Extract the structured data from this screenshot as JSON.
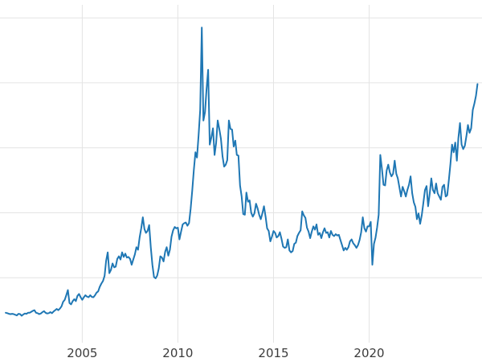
{
  "chart_data": {
    "type": "line",
    "title": "",
    "xlabel": "",
    "ylabel": "",
    "x_tick_labels": [
      "2005",
      "2010",
      "2015",
      "2020"
    ],
    "x_ticks": [
      2005,
      2010,
      2015,
      2020
    ],
    "y_ticks": [
      10,
      20,
      30,
      40,
      50
    ],
    "x_range": [
      2000.7,
      2025.9
    ],
    "y_range": [
      0,
      52
    ],
    "grid": true,
    "legend": "none",
    "line_color": "#1f77b4",
    "grid_color": "#e4e4e4",
    "tick_label_color": "#3b3b3b",
    "background_color": "#ffffff",
    "x_start": 2001.0,
    "x_step": 0.0833333,
    "values": [
      4.6,
      4.55,
      4.45,
      4.4,
      4.45,
      4.4,
      4.3,
      4.2,
      4.45,
      4.4,
      4.15,
      4.35,
      4.5,
      4.45,
      4.6,
      4.6,
      4.75,
      4.9,
      5.0,
      4.6,
      4.55,
      4.4,
      4.5,
      4.7,
      4.85,
      4.6,
      4.5,
      4.55,
      4.7,
      4.55,
      4.8,
      5.0,
      5.2,
      5.0,
      5.25,
      5.6,
      6.3,
      6.6,
      7.3,
      8.1,
      6.1,
      5.9,
      6.4,
      6.7,
      6.4,
      7.2,
      7.5,
      7.0,
      6.6,
      7.0,
      7.3,
      7.1,
      7.0,
      7.3,
      7.05,
      7.0,
      7.3,
      7.7,
      7.9,
      8.6,
      9.1,
      9.5,
      10.3,
      12.6,
      13.9,
      10.7,
      11.2,
      12.2,
      11.6,
      11.7,
      12.9,
      13.3,
      12.8,
      13.9,
      13.2,
      13.7,
      13.1,
      13.2,
      12.9,
      12.0,
      12.8,
      13.6,
      14.7,
      14.3,
      16.2,
      17.6,
      19.3,
      17.5,
      16.9,
      17.2,
      18.1,
      14.7,
      12.0,
      10.1,
      9.9,
      10.3,
      11.4,
      13.3,
      13.1,
      12.5,
      14.0,
      14.7,
      13.4,
      14.3,
      16.3,
      17.3,
      17.8,
      17.6,
      17.7,
      15.9,
      17.1,
      18.2,
      18.4,
      18.5,
      18.0,
      18.4,
      20.6,
      23.4,
      26.6,
      29.3,
      28.5,
      31.9,
      35.8,
      48.5,
      34.2,
      35.5,
      39.0,
      42.0,
      30.5,
      31.6,
      33.0,
      28.9,
      30.7,
      34.2,
      32.9,
      31.4,
      28.7,
      27.1,
      27.4,
      28.1,
      34.2,
      32.9,
      32.8,
      30.2,
      31.1,
      28.9,
      28.8,
      24.2,
      22.5,
      19.8,
      19.7,
      23.1,
      21.7,
      21.9,
      20.0,
      19.4,
      19.9,
      21.4,
      20.7,
      19.7,
      19.0,
      19.9,
      21.0,
      19.4,
      17.6,
      17.2,
      15.6,
      16.3,
      17.2,
      16.9,
      16.2,
      16.4,
      17.0,
      16.0,
      14.8,
      14.6,
      14.7,
      15.9,
      14.2,
      13.9,
      14.1,
      15.2,
      15.4,
      16.4,
      16.9,
      17.3,
      20.2,
      19.6,
      19.2,
      17.7,
      17.1,
      16.1,
      17.1,
      17.9,
      17.4,
      18.2,
      16.6,
      16.9,
      16.1,
      17.0,
      17.6,
      16.9,
      17.0,
      16.2,
      17.2,
      16.6,
      16.4,
      16.7,
      16.5,
      16.6,
      15.8,
      15.0,
      14.2,
      14.6,
      14.3,
      14.7,
      15.6,
      15.9,
      15.3,
      15.0,
      14.6,
      15.0,
      15.8,
      17.0,
      19.3,
      17.6,
      17.1,
      17.9,
      17.9,
      18.6,
      12.0,
      15.2,
      16.2,
      17.7,
      19.7,
      28.9,
      26.8,
      24.3,
      24.2,
      26.5,
      27.4,
      26.2,
      25.6,
      26.0,
      28.0,
      26.0,
      25.3,
      23.9,
      22.5,
      24.0,
      23.3,
      22.5,
      23.5,
      24.3,
      25.6,
      23.0,
      21.6,
      20.9,
      19.0,
      19.9,
      18.3,
      19.6,
      21.5,
      23.5,
      24.1,
      21.0,
      22.9,
      25.3,
      23.5,
      23.0,
      24.5,
      23.0,
      22.5,
      22.0,
      24.0,
      24.3,
      22.5,
      22.7,
      25.0,
      27.5,
      30.5,
      29.3,
      30.8,
      28.0,
      31.5,
      33.8,
      30.5,
      29.8,
      30.3,
      31.8,
      33.5,
      32.3,
      33.0,
      35.8,
      36.8,
      38.0,
      39.8
    ]
  }
}
